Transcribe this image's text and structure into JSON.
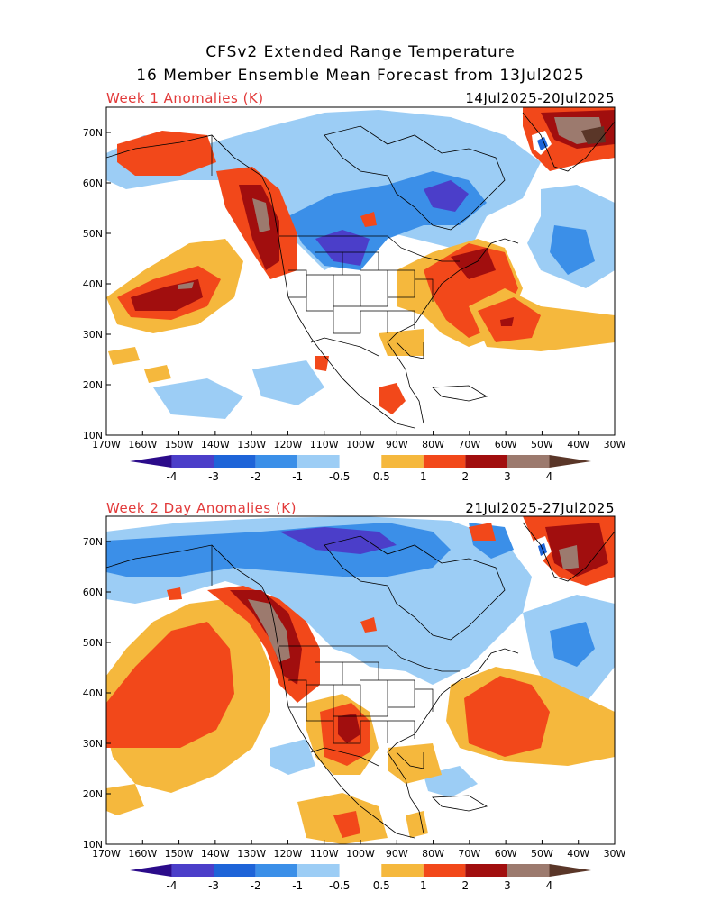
{
  "header": {
    "title_line1": "CFSv2 Extended Range Temperature",
    "title_line2": "16 Member Ensemble Mean Forecast from 13Jul2025"
  },
  "panels": [
    {
      "label": "Week 1 Anomalies (K)",
      "dates": "14Jul2025-20Jul2025"
    },
    {
      "label": "Week 2 Day Anomalies (K)",
      "dates": "21Jul2025-27Jul2025"
    }
  ],
  "axes": {
    "lat_labels": [
      "70N",
      "60N",
      "50N",
      "40N",
      "30N",
      "20N",
      "10N"
    ],
    "lon_labels": [
      "170W",
      "160W",
      "150W",
      "140W",
      "130W",
      "120W",
      "110W",
      "100W",
      "90W",
      "80W",
      "70W",
      "60W",
      "50W",
      "40W",
      "30W"
    ]
  },
  "colorbar": {
    "tick_labels": [
      "-4",
      "-3",
      "-2",
      "-1",
      "-0.5",
      "0.5",
      "1",
      "2",
      "3",
      "4"
    ],
    "colors": [
      "#2b0b8a",
      "#4b3ec9",
      "#1e64d8",
      "#3b8fe8",
      "#9ccdf5",
      "#ffffff",
      "#f5b83d",
      "#f2481a",
      "#a10e0e",
      "#9c7a6e",
      "#5a3628"
    ]
  }
}
